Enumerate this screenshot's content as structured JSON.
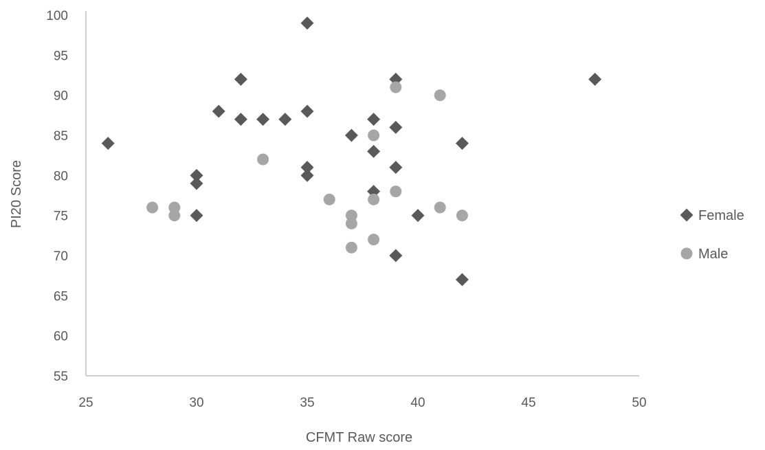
{
  "chart_data": {
    "type": "scatter",
    "title": "",
    "xlabel": "CFMT Raw score",
    "ylabel": "PI20 Score",
    "xlim": [
      25,
      50
    ],
    "ylim": [
      55,
      100
    ],
    "xticks": [
      25,
      30,
      35,
      40,
      45,
      50
    ],
    "yticks": [
      55,
      60,
      65,
      70,
      75,
      80,
      85,
      90,
      95,
      100
    ],
    "grid": false,
    "legend_position": "right",
    "series": [
      {
        "name": "Female",
        "marker": "diamond",
        "color": "#595959",
        "points": [
          [
            26,
            84
          ],
          [
            30,
            80
          ],
          [
            30,
            79
          ],
          [
            30,
            75
          ],
          [
            31,
            88
          ],
          [
            32,
            92
          ],
          [
            32,
            87
          ],
          [
            33,
            87
          ],
          [
            34,
            87
          ],
          [
            35,
            99
          ],
          [
            35,
            88
          ],
          [
            35,
            81
          ],
          [
            35,
            80
          ],
          [
            37,
            85
          ],
          [
            38,
            87
          ],
          [
            38,
            83
          ],
          [
            38,
            78
          ],
          [
            39,
            92
          ],
          [
            39,
            86
          ],
          [
            39,
            81
          ],
          [
            39,
            70
          ],
          [
            40,
            75
          ],
          [
            42,
            84
          ],
          [
            42,
            67
          ],
          [
            48,
            92
          ]
        ]
      },
      {
        "name": "Male",
        "marker": "circle",
        "color": "#a6a6a6",
        "points": [
          [
            28,
            76
          ],
          [
            29,
            76
          ],
          [
            29,
            75
          ],
          [
            33,
            82
          ],
          [
            36,
            77
          ],
          [
            37,
            75
          ],
          [
            37,
            74
          ],
          [
            37,
            71
          ],
          [
            38,
            85
          ],
          [
            38,
            77
          ],
          [
            38,
            72
          ],
          [
            39,
            91
          ],
          [
            39,
            78
          ],
          [
            41,
            90
          ],
          [
            41,
            76
          ],
          [
            42,
            75
          ]
        ]
      }
    ]
  }
}
